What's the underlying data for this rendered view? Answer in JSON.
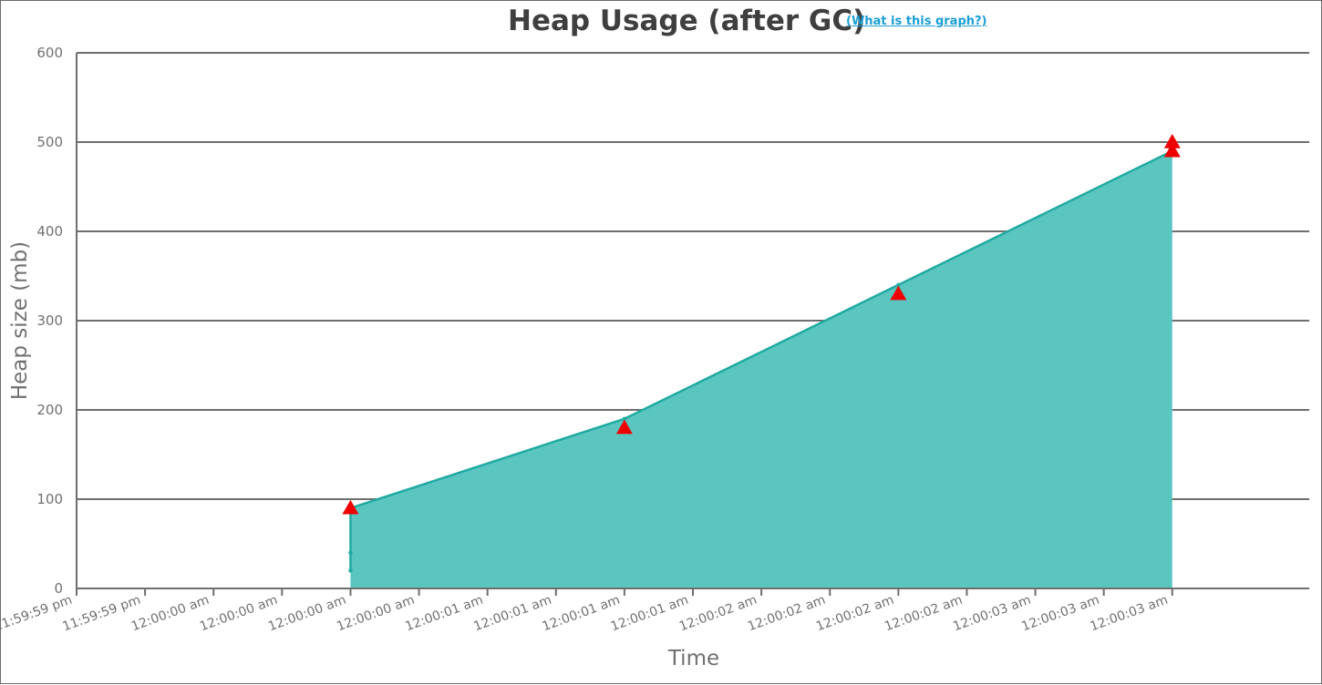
{
  "header": {
    "title": "Heap Usage (after GC)",
    "help_link": "(What is this graph?)"
  },
  "colors": {
    "area_fill": "#5bc6c0",
    "area_line": "#21aaa2",
    "marker": "#ee0000",
    "grid": "#6e6e6e",
    "text": "#707070"
  },
  "chart_data": {
    "type": "area",
    "title": "Heap Usage (after GC)",
    "xlabel": "Time",
    "ylabel": "Heap size (mb)",
    "ylim": [
      0,
      600
    ],
    "yticks": [
      0,
      100,
      200,
      300,
      400,
      500,
      600
    ],
    "grid": true,
    "xlim_seconds": [
      -1,
      3.5
    ],
    "xtick_step_seconds": 0.25,
    "xtick_labels": [
      "11:59:59 pm",
      "11:59:59 pm",
      "12:00:00 am",
      "12:00:00 am",
      "12:00:00 am",
      "12:00:00 am",
      "12:00:01 am",
      "12:00:01 am",
      "12:00:01 am",
      "12:00:01 am",
      "12:00:02 am",
      "12:00:02 am",
      "12:00:02 am",
      "12:00:02 am",
      "12:00:03 am",
      "12:00:03 am",
      "12:00:03 am"
    ],
    "series": [
      {
        "type": "area",
        "x_seconds": [
          0,
          0,
          0,
          1,
          2,
          3
        ],
        "values": [
          20,
          40,
          90,
          190,
          340,
          490
        ]
      },
      {
        "type": "marker-triangle",
        "x_seconds": [
          0,
          1,
          2,
          3,
          3
        ],
        "values": [
          90,
          180,
          330,
          490,
          500
        ]
      }
    ]
  }
}
